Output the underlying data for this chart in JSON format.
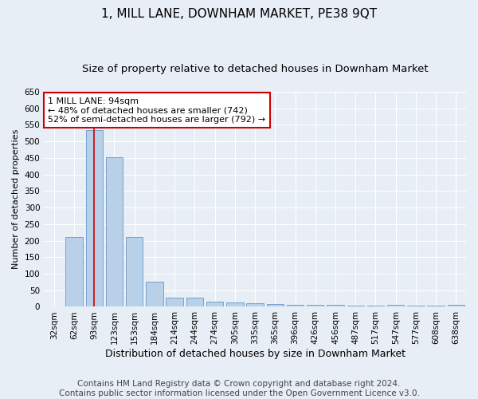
{
  "title": "1, MILL LANE, DOWNHAM MARKET, PE38 9QT",
  "subtitle": "Size of property relative to detached houses in Downham Market",
  "xlabel": "Distribution of detached houses by size in Downham Market",
  "ylabel": "Number of detached properties",
  "categories": [
    "32sqm",
    "62sqm",
    "93sqm",
    "123sqm",
    "153sqm",
    "184sqm",
    "214sqm",
    "244sqm",
    "274sqm",
    "305sqm",
    "335sqm",
    "365sqm",
    "396sqm",
    "426sqm",
    "456sqm",
    "487sqm",
    "517sqm",
    "547sqm",
    "577sqm",
    "608sqm",
    "638sqm"
  ],
  "values": [
    0,
    210,
    535,
    453,
    210,
    77,
    27,
    27,
    15,
    12,
    10,
    8,
    5,
    5,
    5,
    3,
    3,
    5,
    3,
    3,
    5
  ],
  "bar_color": "#b8d0e8",
  "bar_edge_color": "#6699cc",
  "vline_x_index": 2,
  "vline_color": "#cc0000",
  "annotation_text": "1 MILL LANE: 94sqm\n← 48% of detached houses are smaller (742)\n52% of semi-detached houses are larger (792) →",
  "annotation_box_color": "white",
  "annotation_box_edge_color": "#cc0000",
  "ylim": [
    0,
    650
  ],
  "yticks": [
    0,
    50,
    100,
    150,
    200,
    250,
    300,
    350,
    400,
    450,
    500,
    550,
    600,
    650
  ],
  "footer_line1": "Contains HM Land Registry data © Crown copyright and database right 2024.",
  "footer_line2": "Contains public sector information licensed under the Open Government Licence v3.0.",
  "bg_color": "#e8eef5",
  "plot_bg_color": "#e8eef5",
  "title_fontsize": 11,
  "subtitle_fontsize": 9.5,
  "xlabel_fontsize": 9,
  "ylabel_fontsize": 8,
  "tick_fontsize": 7.5,
  "footer_fontsize": 7.5,
  "annot_fontsize": 8
}
